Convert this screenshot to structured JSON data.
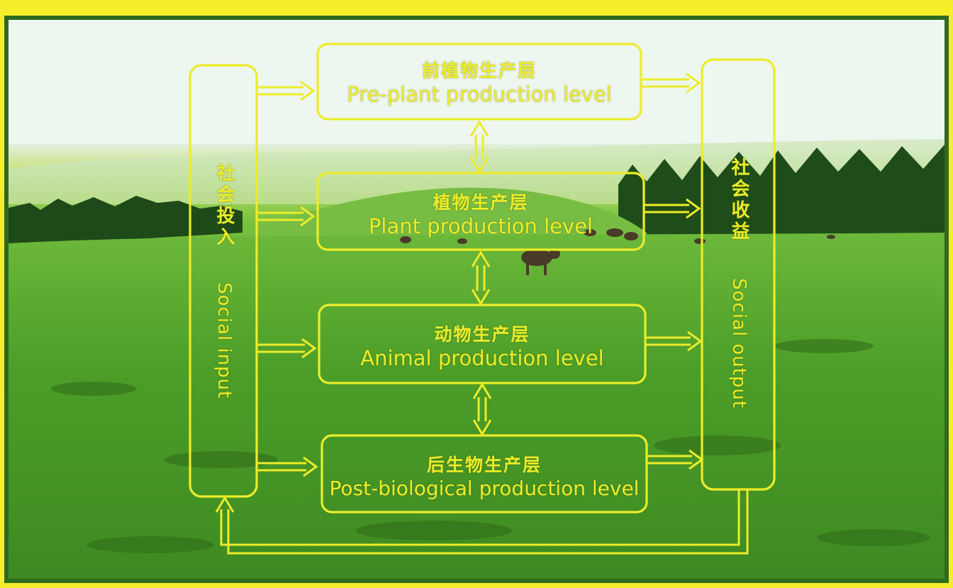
{
  "diagram": {
    "input_box": {
      "zh": "社会投入",
      "en": "Social input"
    },
    "output_box": {
      "zh": "社会收益",
      "en": "Social output"
    },
    "levels": [
      {
        "zh": "前植物生产层",
        "en": "Pre-plant production level"
      },
      {
        "zh": "植物生产层",
        "en": "Plant production level"
      },
      {
        "zh": "动物生产层",
        "en": "Animal production level"
      },
      {
        "zh": "后生物生产层",
        "en": "Post-biological production level"
      }
    ]
  },
  "colors": {
    "outer_background": "#f6ee2a",
    "frame_border": "#2e6b1d",
    "diagram_line": "#ecec2a",
    "meadow": "#4fa02a",
    "forest": "#1d4a18",
    "sky": "#eef6f0"
  },
  "background_photo": "meadow with conifer forest and grazing cattle"
}
